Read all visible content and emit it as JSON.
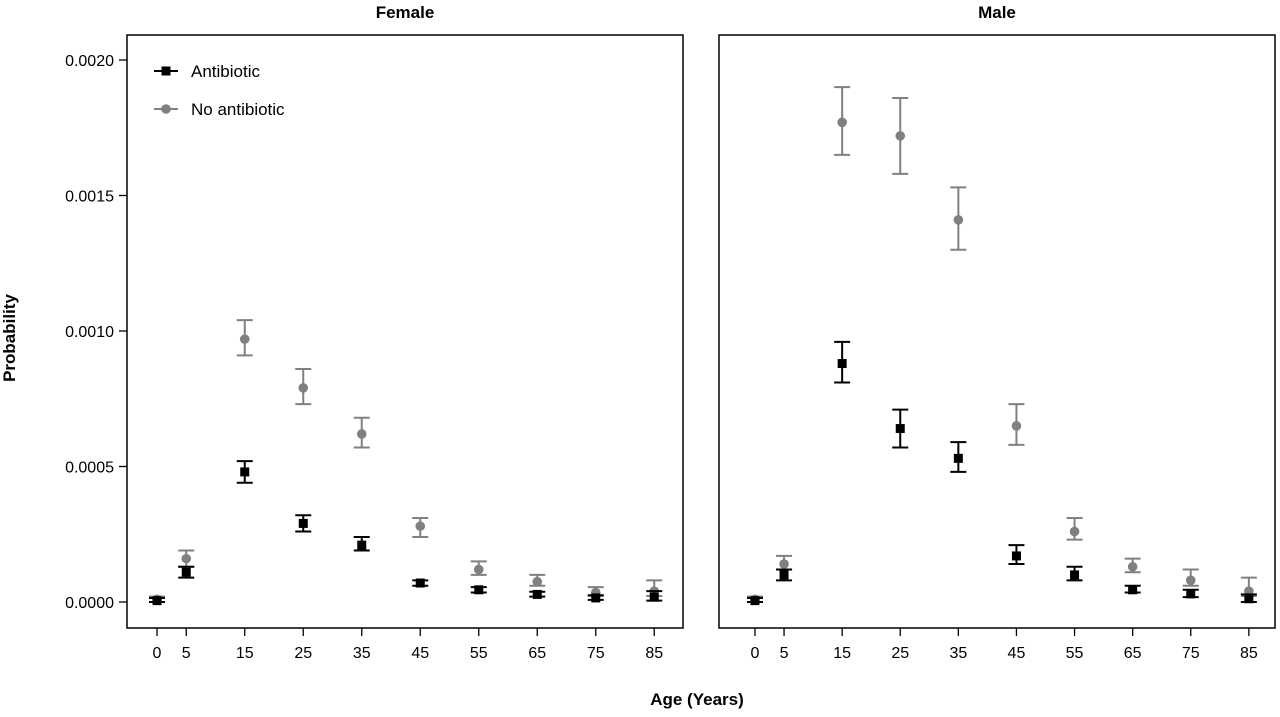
{
  "chart_data": [
    {
      "type": "scatter",
      "title": "Female",
      "xlabel": "Age (Years)",
      "ylabel": "Probability",
      "x": [
        0,
        5,
        15,
        25,
        35,
        45,
        55,
        65,
        75,
        85
      ],
      "x_ticks": [
        "0",
        "5",
        "15",
        "25",
        "35",
        "45",
        "55",
        "65",
        "75",
        "85"
      ],
      "ylim": [
        0,
        0.002
      ],
      "y_ticks": [
        "0.0000",
        "0.0005",
        "0.0010",
        "0.0015",
        "0.0020"
      ],
      "legend": "top-left",
      "grid": false,
      "series": [
        {
          "name": "Antibiotic",
          "marker": "square",
          "color": "#000000",
          "values": [
            5e-06,
            0.00011,
            0.00048,
            0.00029,
            0.00021,
            7e-05,
            4.5e-05,
            2.8e-05,
            1.5e-05,
            1.8e-05
          ],
          "lower": [
            0.0,
            9e-05,
            0.00044,
            0.00026,
            0.00019,
            6e-05,
            3.5e-05,
            2e-05,
            8e-06,
            5e-06
          ],
          "upper": [
            1.5e-05,
            0.00013,
            0.00052,
            0.00032,
            0.00024,
            8e-05,
            5.5e-05,
            3.8e-05,
            2.5e-05,
            4e-05
          ]
        },
        {
          "name": "No antibiotic",
          "marker": "circle",
          "color": "#808080",
          "values": [
            1e-05,
            0.00016,
            0.00097,
            0.00079,
            0.00062,
            0.00028,
            0.00012,
            7.5e-05,
            3.5e-05,
            4e-05
          ],
          "lower": [
            0.0,
            0.00013,
            0.00091,
            0.00073,
            0.00057,
            0.00024,
            0.0001,
            6e-05,
            2.2e-05,
            2.2e-05
          ],
          "upper": [
            2e-05,
            0.00019,
            0.00104,
            0.00086,
            0.00068,
            0.00031,
            0.00015,
            0.0001,
            5.5e-05,
            8e-05
          ]
        }
      ]
    },
    {
      "type": "scatter",
      "title": "Male",
      "xlabel": "Age (Years)",
      "ylabel": "Probability",
      "x": [
        0,
        5,
        15,
        25,
        35,
        45,
        55,
        65,
        75,
        85
      ],
      "x_ticks": [
        "0",
        "5",
        "15",
        "25",
        "35",
        "45",
        "55",
        "65",
        "75",
        "85"
      ],
      "ylim": [
        0,
        0.002
      ],
      "grid": false,
      "series": [
        {
          "name": "Antibiotic",
          "marker": "square",
          "color": "#000000",
          "values": [
            5e-06,
            0.0001,
            0.00088,
            0.00064,
            0.00053,
            0.00017,
            0.0001,
            4.5e-05,
            3e-05,
            1.2e-05
          ],
          "lower": [
            0.0,
            8e-05,
            0.00081,
            0.00057,
            0.00048,
            0.00014,
            8e-05,
            3.5e-05,
            1.8e-05,
            0.0
          ],
          "upper": [
            1.5e-05,
            0.00012,
            0.00096,
            0.00071,
            0.00059,
            0.00021,
            0.00013,
            6e-05,
            4.5e-05,
            2.8e-05
          ]
        },
        {
          "name": "No antibiotic",
          "marker": "circle",
          "color": "#808080",
          "values": [
            1e-05,
            0.00014,
            0.00177,
            0.00172,
            0.00141,
            0.00065,
            0.00026,
            0.00013,
            8e-05,
            4e-05
          ],
          "lower": [
            0.0,
            0.00012,
            0.00165,
            0.00158,
            0.0013,
            0.00058,
            0.00023,
            0.00011,
            6e-05,
            2.2e-05
          ],
          "upper": [
            2e-05,
            0.00017,
            0.0019,
            0.00186,
            0.00153,
            0.00073,
            0.00031,
            0.00016,
            0.00012,
            9e-05
          ]
        }
      ]
    }
  ]
}
